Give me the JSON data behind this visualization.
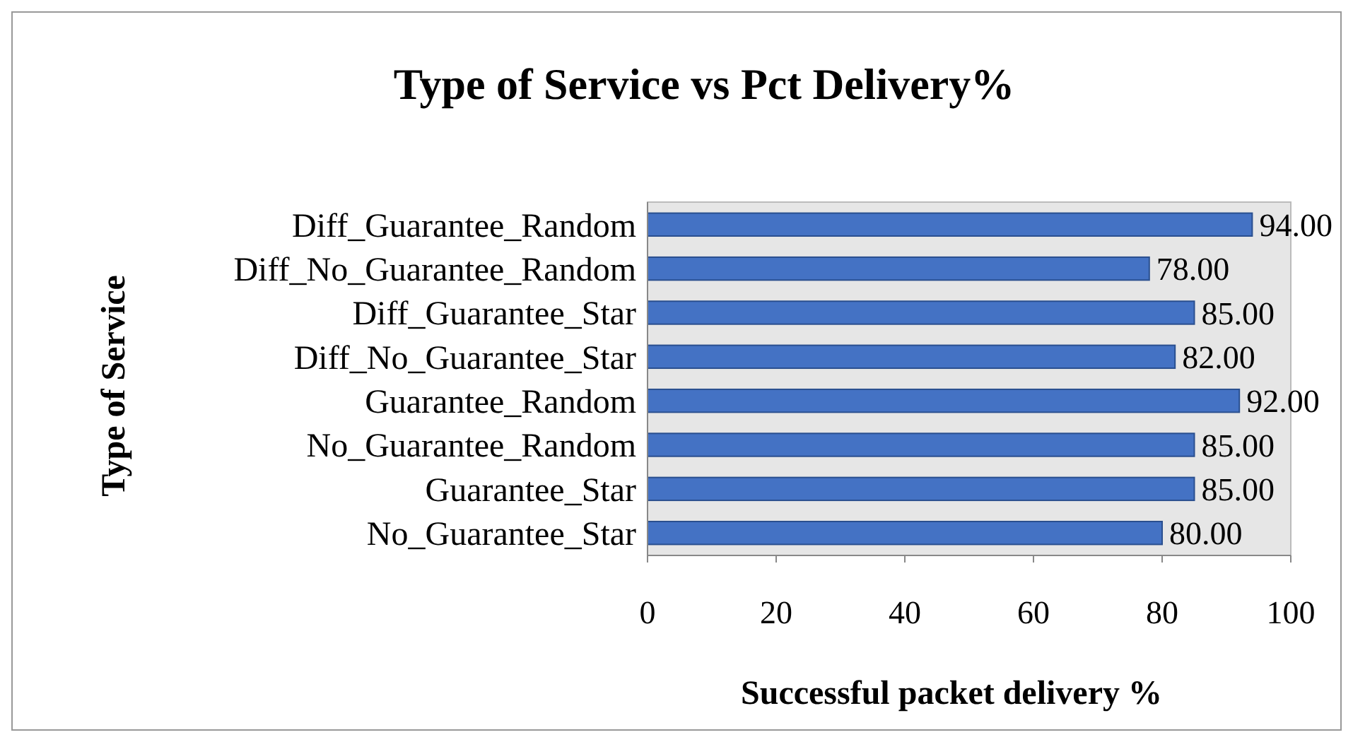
{
  "chart_data": {
    "type": "bar",
    "orientation": "horizontal",
    "title": "Type of Service vs Pct Delivery%",
    "xlabel": "Successful packet delivery %",
    "ylabel": "Type of Service",
    "categories": [
      "Diff_Guarantee_Random",
      "Diff_No_Guarantee_Random",
      "Diff_Guarantee_Star",
      "Diff_No_Guarantee_Star",
      "Guarantee_Random",
      "No_Guarantee_Random",
      "Guarantee_Star",
      "No_Guarantee_Star"
    ],
    "values": [
      94,
      78,
      85,
      82,
      92,
      85,
      85,
      80
    ],
    "value_labels": [
      "94.00",
      "78.00",
      "85.00",
      "82.00",
      "92.00",
      "85.00",
      "85.00",
      "80.00"
    ],
    "color": "#4472c4",
    "xlim": [
      0,
      100
    ],
    "xticks": [
      0,
      20,
      40,
      60,
      80,
      100
    ],
    "grid": false
  }
}
